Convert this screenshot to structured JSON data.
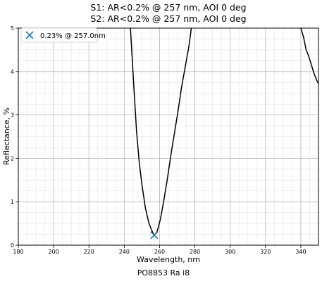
{
  "chart_data": {
    "type": "line",
    "title_lines": [
      "S1: AR<0.2% @ 257 nm, AOI 0 deg",
      "S2: AR<0.2% @ 257 nm, AOI 0 deg"
    ],
    "xlabel": "Wavelength, nm",
    "ylabel": "Reflectance, %",
    "footer": "PO8853 Ra i8",
    "xlim": [
      180,
      350
    ],
    "ylim": [
      0,
      5
    ],
    "x_ticks": [
      180,
      200,
      220,
      240,
      260,
      280,
      300,
      320,
      340
    ],
    "y_ticks": [
      0,
      1,
      2,
      3,
      4,
      5
    ],
    "grid": true,
    "minor_grid": true,
    "legend_placement": "top-left",
    "series": [
      {
        "color": "#000000",
        "points": [
          [
            243.5,
            5.0
          ],
          [
            244.5,
            4.3
          ],
          [
            245.5,
            3.6
          ],
          [
            247,
            2.6
          ],
          [
            248.5,
            1.9
          ],
          [
            250,
            1.4
          ],
          [
            252,
            0.85
          ],
          [
            254,
            0.5
          ],
          [
            256,
            0.3
          ],
          [
            257,
            0.23
          ],
          [
            258.5,
            0.3
          ],
          [
            260.5,
            0.6
          ],
          [
            262.5,
            1.05
          ],
          [
            264.5,
            1.55
          ],
          [
            266.5,
            2.1
          ],
          [
            268.5,
            2.6
          ],
          [
            270.5,
            3.1
          ],
          [
            272.5,
            3.65
          ],
          [
            274.5,
            4.1
          ],
          [
            276.5,
            4.55
          ],
          [
            278,
            5.0
          ]
        ]
      },
      {
        "color": "#000000",
        "points": [
          [
            340,
            5.0
          ],
          [
            341.5,
            4.8
          ],
          [
            343,
            4.5
          ],
          [
            344.5,
            4.35
          ],
          [
            346,
            4.15
          ],
          [
            347.5,
            3.95
          ],
          [
            349,
            3.8
          ],
          [
            350,
            3.72
          ]
        ]
      }
    ],
    "marker": {
      "x": 257,
      "y": 0.23,
      "color": "#1f77b4",
      "legend_label": "0.23% @ 257.0nm"
    }
  }
}
